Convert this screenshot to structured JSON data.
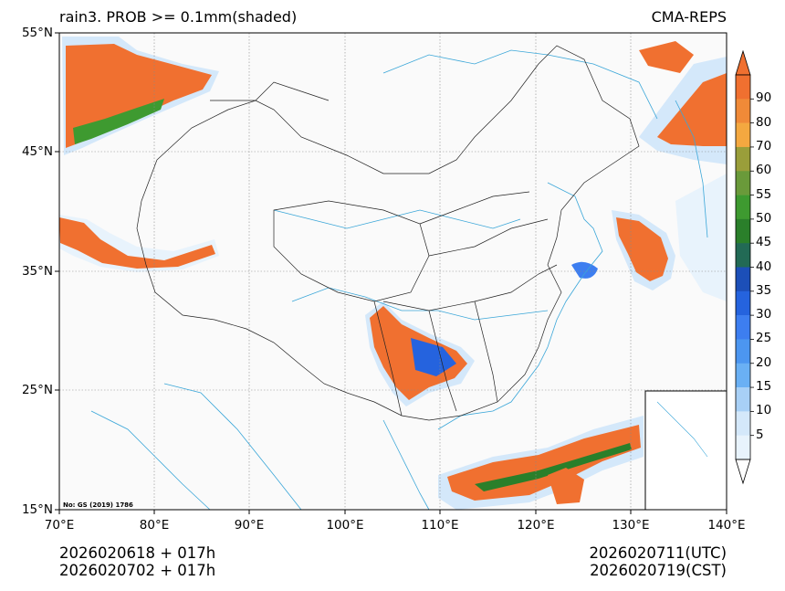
{
  "title": {
    "left": "rain3. PROB >= 0.1mm(shaded)",
    "right": "CMA-REPS"
  },
  "map": {
    "lat_labels": [
      "55°N",
      "45°N",
      "35°N",
      "25°N",
      "15°N"
    ],
    "lon_labels": [
      "70°E",
      "80°E",
      "90°E",
      "100°E",
      "110°E",
      "120°E",
      "130°E",
      "140°E"
    ],
    "extent": {
      "lon": [
        70,
        140
      ],
      "lat": [
        15,
        55
      ]
    },
    "approval_number": "No: GS (2019) 1786",
    "colors": {
      "ocean_bg": "#fafafa",
      "rivers": "#3aa6d8",
      "borders": "#222222",
      "grid": "#888888"
    }
  },
  "colorbar": {
    "levels": [
      "90",
      "80",
      "70",
      "60",
      "55",
      "50",
      "45",
      "40",
      "35",
      "30",
      "25",
      "20",
      "15",
      "10",
      "5"
    ],
    "colors": [
      "#f07030",
      "#f08a38",
      "#f4a840",
      "#9a9e3a",
      "#6a9a3a",
      "#3e9a30",
      "#2a7f2a",
      "#226a55",
      "#1c4fb8",
      "#2563de",
      "#3d7ef0",
      "#4c96f0",
      "#6ab0f4",
      "#a8d0f6",
      "#d4e8fa",
      "#e8f3fc"
    ]
  },
  "footer": {
    "init_line1": "2026020618  +  017h",
    "init_line2": "2026020702  +  017h",
    "valid_utc": "2026020711(UTC)",
    "valid_cst": "2026020719(CST)"
  }
}
